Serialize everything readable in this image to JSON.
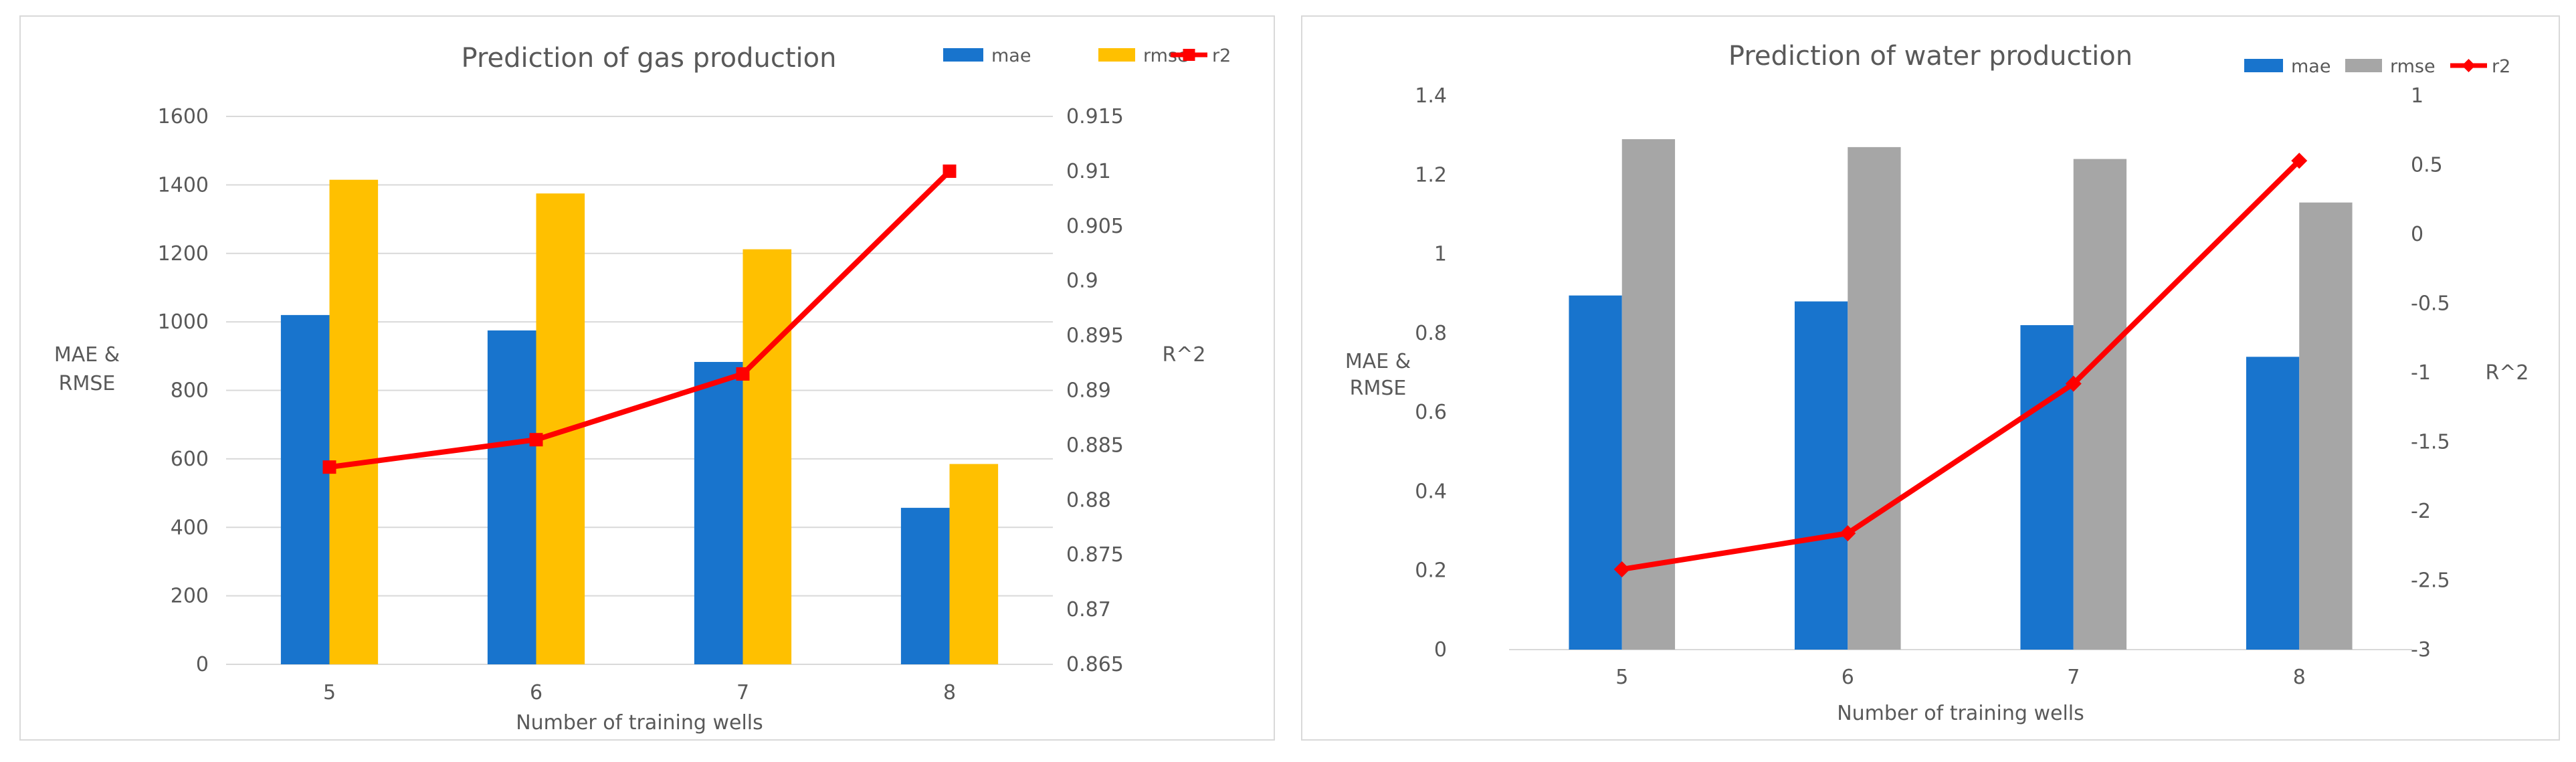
{
  "chart_data": [
    {
      "type": "bar+line",
      "title": "Prediction of gas production",
      "xlabel": "Number of training wells",
      "ylabel": "MAE & RMSE",
      "y2label": "R^2",
      "categories": [
        "5",
        "6",
        "7",
        "8"
      ],
      "ylim": [
        0,
        1600
      ],
      "yticks": [
        "0",
        "200",
        "400",
        "600",
        "800",
        "1000",
        "1200",
        "1400",
        "1600"
      ],
      "y2lim": [
        0.865,
        0.915
      ],
      "y2ticks": [
        "0.865",
        "0.87",
        "0.875",
        "0.88",
        "0.885",
        "0.89",
        "0.895",
        "0.9",
        "0.905",
        "0.91",
        "0.915"
      ],
      "grid": true,
      "legend_position": "top-right",
      "series": [
        {
          "name": "mae",
          "kind": "bar",
          "axis": "left",
          "color": "#1874CD",
          "values": [
            1020,
            975,
            883,
            457
          ]
        },
        {
          "name": "rmse",
          "kind": "bar",
          "axis": "left",
          "color": "#FFC000",
          "values": [
            1415,
            1375,
            1212,
            585
          ]
        },
        {
          "name": "r2",
          "kind": "line",
          "axis": "right",
          "marker": "square",
          "color": "#FF0000",
          "values": [
            0.883,
            0.8855,
            0.8915,
            0.91
          ]
        }
      ]
    },
    {
      "type": "bar+line",
      "title": "Prediction of water production",
      "xlabel": "Number of training wells",
      "ylabel": "MAE & RMSE",
      "y2label": "R^2",
      "categories": [
        "5",
        "6",
        "7",
        "8"
      ],
      "ylim": [
        0,
        1.4
      ],
      "yticks": [
        "0",
        "0.2",
        "0.4",
        "0.6",
        "0.8",
        "1",
        "1.2",
        "1.4"
      ],
      "y2lim": [
        -3,
        1
      ],
      "y2ticks": [
        "-3",
        "-2.5",
        "-2",
        "-1.5",
        "-1",
        "-0.5",
        "0",
        "0.5",
        "1"
      ],
      "grid": false,
      "legend_position": "top-right",
      "series": [
        {
          "name": "mae",
          "kind": "bar",
          "axis": "left",
          "color": "#1874CD",
          "values": [
            0.895,
            0.88,
            0.82,
            0.74
          ]
        },
        {
          "name": "rmse",
          "kind": "bar",
          "axis": "left",
          "color": "#A6A6A6",
          "values": [
            1.29,
            1.27,
            1.24,
            1.13
          ]
        },
        {
          "name": "r2",
          "kind": "line",
          "axis": "right",
          "marker": "diamond",
          "color": "#FF0000",
          "values": [
            -2.42,
            -2.16,
            -1.08,
            0.53
          ]
        }
      ]
    }
  ]
}
